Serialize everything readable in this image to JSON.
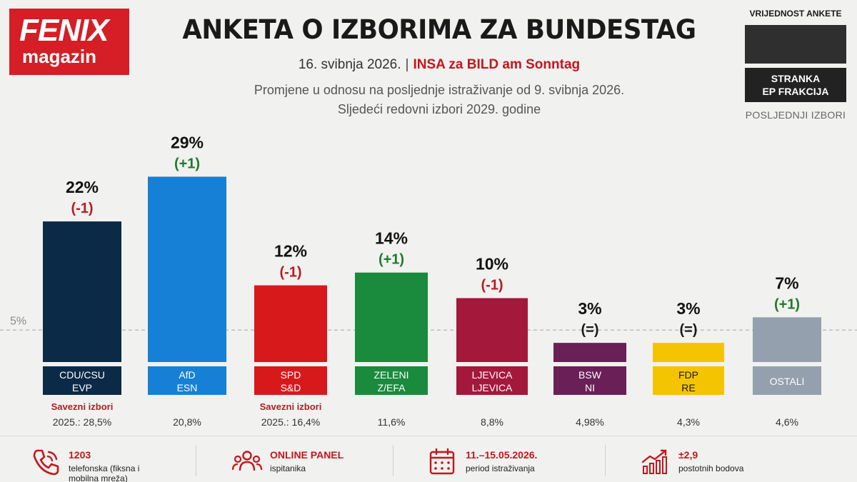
{
  "brand": {
    "line1": "FENIX",
    "line2": "magazin"
  },
  "header": {
    "title": "ANKETA O IZBORIMA ZA BUNDESTAG",
    "date": "16. svibnja 2026.",
    "separator": "|",
    "source": "INSA za BILD am Sonntag",
    "subtitle1": "Promjene u odnosu na posljednje istraživanje od 9. svibnja 2026.",
    "subtitle2": "Sljedeći redovni izbori 2029. godine"
  },
  "legend": {
    "title": "VRIJEDNOST ANKETE",
    "party_label_line1": "STRANKA",
    "party_label_line2": "EP FRAKCIJA",
    "footer": "POSLJEDNJI IZBORI"
  },
  "colors": {
    "brand_red": "#d51e25",
    "positive": "#1f7a2c",
    "negative": "#b41d24"
  },
  "chart_data": {
    "type": "bar",
    "threshold": {
      "value": 5,
      "label": "5%"
    },
    "ylim": [
      0,
      30
    ],
    "categories": [
      "CDU/CSU",
      "AfD",
      "SPD",
      "ZELENI",
      "LJEVICA",
      "BSW",
      "FDP",
      "OSTALI"
    ],
    "ep_groups": [
      "EVP",
      "ESN",
      "S&D",
      "Z/EFA",
      "LJEVICA",
      "NI",
      "RE",
      ""
    ],
    "values": [
      22,
      29,
      12,
      14,
      10,
      3,
      3,
      7
    ],
    "value_labels": [
      "22%",
      "29%",
      "12%",
      "14%",
      "10%",
      "3%",
      "3%",
      "7%"
    ],
    "changes": [
      "(-1)",
      "(+1)",
      "(-1)",
      "(+1)",
      "(-1)",
      "(=)",
      "(=)",
      "(+1)"
    ],
    "change_types": [
      "neg",
      "pos",
      "neg",
      "pos",
      "neg",
      "neutral",
      "neutral",
      "pos"
    ],
    "colors": [
      "#0b2a47",
      "#1680d6",
      "#d7191c",
      "#1a8a3c",
      "#a3183b",
      "#6a1f57",
      "#f4c400",
      "#94a0ad"
    ],
    "label_text_colors": [
      "#ffffff",
      "#ffffff",
      "#ffffff",
      "#ffffff",
      "#ffffff",
      "#ffffff",
      "#1a1a1a",
      "#ffffff"
    ],
    "last_election_note": [
      "Savezni izbori",
      "",
      "Savezni izbori",
      "",
      "",
      "",
      "",
      ""
    ],
    "last_election_prefix": [
      "2025.:",
      "",
      "2025.:",
      "",
      "",
      "",
      "",
      ""
    ],
    "last_election": [
      "28,5%",
      "20,8%",
      "16,4%",
      "11,6%",
      "8,8%",
      "4,98%",
      "4,3%",
      "4,6%"
    ]
  },
  "footer": [
    {
      "icon": "phone-icon",
      "big": "1203",
      "small1": "telefonska (fiksna i",
      "small2": "mobilna mreža)"
    },
    {
      "icon": "people-icon",
      "big": "ONLINE PANEL",
      "small1": "ispitanika",
      "small2": ""
    },
    {
      "icon": "calendar-icon",
      "big": "11.–15.05.2026.",
      "small1": "period istraživanja",
      "small2": ""
    },
    {
      "icon": "growth-chart-icon",
      "big": "±2,9",
      "small1": "postotnih bodova",
      "small2": ""
    }
  ]
}
